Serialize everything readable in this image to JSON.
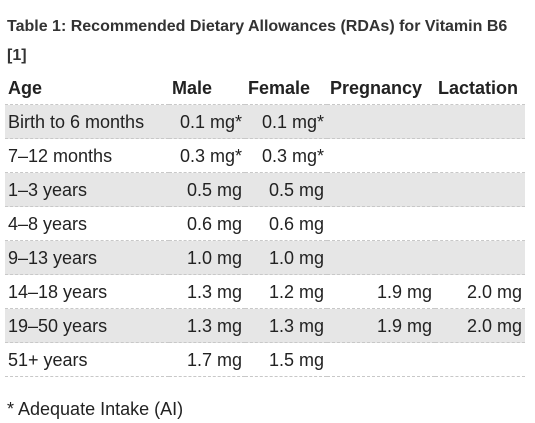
{
  "caption": {
    "line1": "Table 1: Recommended Dietary Allowances (RDAs) for Vitamin B6",
    "line2": "[1]"
  },
  "table": {
    "headers": [
      "Age",
      "Male",
      "Female",
      "Pregnancy",
      "Lactation"
    ],
    "rows": [
      [
        "Birth to 6 months",
        "0.1 mg*",
        "0.1 mg*",
        "",
        ""
      ],
      [
        "7–12 months",
        "0.3 mg*",
        "0.3 mg*",
        "",
        ""
      ],
      [
        "1–3 years",
        "0.5 mg",
        "0.5 mg",
        "",
        ""
      ],
      [
        "4–8 years",
        "0.6 mg",
        "0.6 mg",
        "",
        ""
      ],
      [
        "9–13 years",
        "1.0 mg",
        "1.0 mg",
        "",
        ""
      ],
      [
        "14–18 years",
        "1.3 mg",
        "1.2 mg",
        "1.9 mg",
        "2.0 mg"
      ],
      [
        "19–50 years",
        "1.3 mg",
        "1.3 mg",
        "1.9 mg",
        "2.0 mg"
      ],
      [
        "51+ years",
        "1.7 mg",
        "1.5 mg",
        "",
        ""
      ]
    ]
  },
  "footnote": "* Adequate Intake (AI)",
  "colors": {
    "stripe": "#e6e6e6",
    "text": "#222222",
    "rule": "#c8c8c8"
  }
}
